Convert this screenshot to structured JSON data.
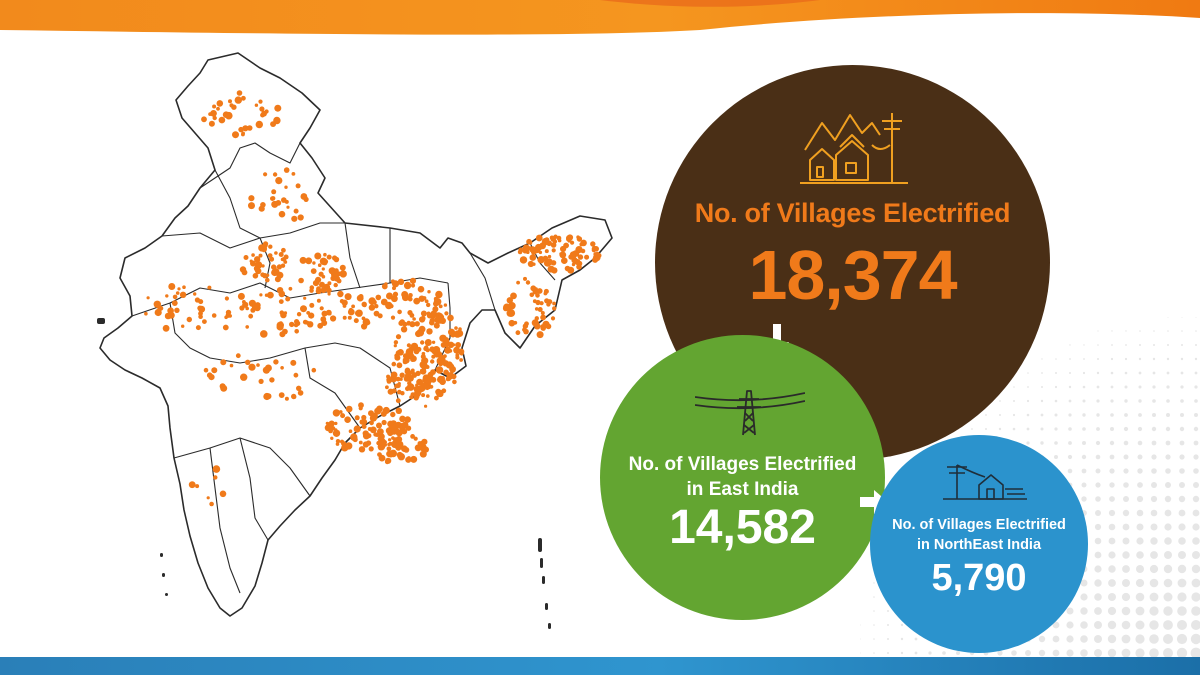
{
  "colors": {
    "accent_orange": "#f07a1a",
    "brown_circle": "#4a2f16",
    "green_circle": "#63a531",
    "blue_circle": "#2b93cd",
    "map_dots": "#f07a1a"
  },
  "map": {
    "icon": "india-map-village-dots"
  },
  "total": {
    "icon": "village-electric-pole-icon",
    "label": "No. of Villages Electrified",
    "value": "18,374"
  },
  "east": {
    "icon": "transmission-tower-icon",
    "label_line1": "No. of Villages Electrified",
    "label_line2": "in East India",
    "value": "14,582"
  },
  "northeast": {
    "icon": "house-electric-pole-icon",
    "label_line1": "No. of Villages Electrified",
    "label_line2": "in NorthEast India",
    "value": "5,790"
  }
}
